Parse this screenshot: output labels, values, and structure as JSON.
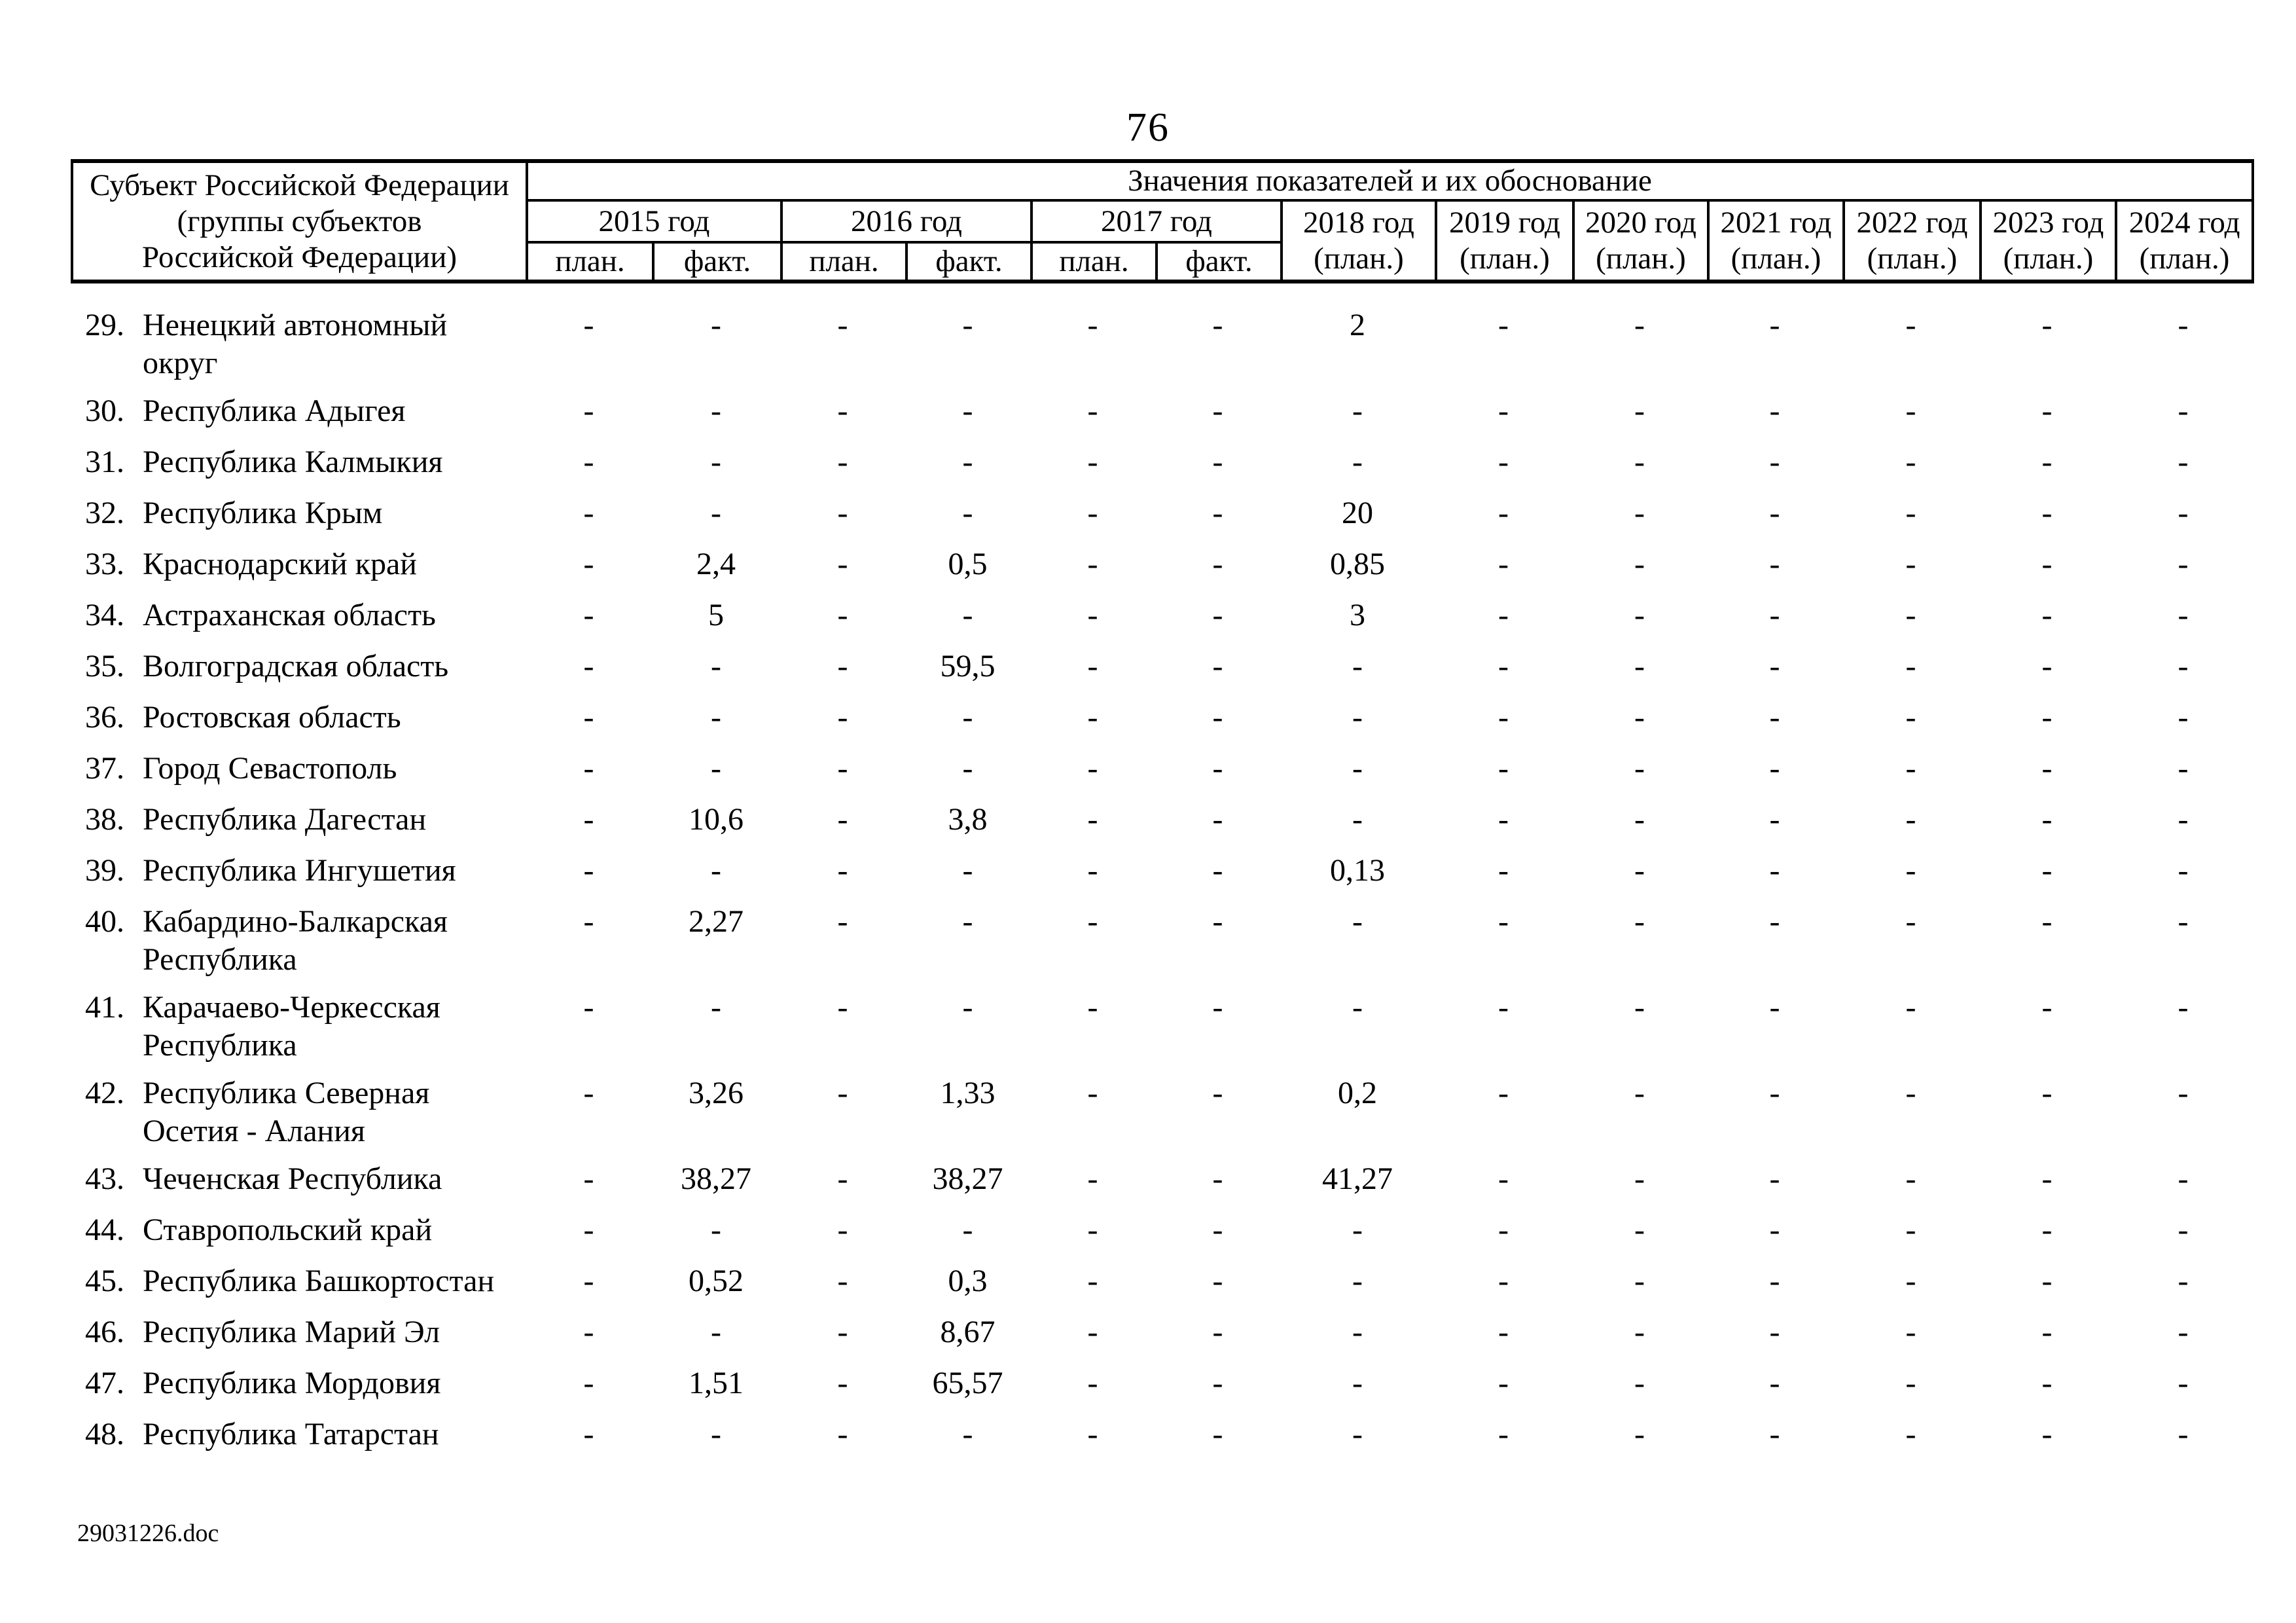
{
  "page": {
    "number": "76",
    "footer": "29031226.doc"
  },
  "table": {
    "region_header_lines": [
      "Субъект Российской Федерации",
      "(группы субъектов",
      "Российской Федерации)"
    ],
    "values_header": "Значения показателей и их обоснование",
    "year_columns": [
      {
        "label": "2015 год",
        "sub_labels": [
          "план.",
          "факт."
        ]
      },
      {
        "label": "2016 год",
        "sub_labels": [
          "план.",
          "факт."
        ]
      },
      {
        "label": "2017 год",
        "sub_labels": [
          "план.",
          "факт."
        ]
      },
      {
        "label": "2018 год",
        "sub_labels": [
          "(план.)"
        ]
      },
      {
        "label": "2019 год",
        "sub_labels": [
          "(план.)"
        ]
      },
      {
        "label": "2020 год",
        "sub_labels": [
          "(план.)"
        ]
      },
      {
        "label": "2021 год",
        "sub_labels": [
          "(план.)"
        ]
      },
      {
        "label": "2022 год",
        "sub_labels": [
          "(план.)"
        ]
      },
      {
        "label": "2023 год",
        "sub_labels": [
          "(план.)"
        ]
      },
      {
        "label": "2024 год",
        "sub_labels": [
          "(план.)"
        ]
      }
    ],
    "rows": [
      {
        "num": "29.",
        "name_lines": [
          "Ненецкий автономный",
          "округ"
        ],
        "values": [
          "-",
          "-",
          "-",
          "-",
          "-",
          "-",
          "2",
          "-",
          "-",
          "-",
          "-",
          "-",
          "-"
        ]
      },
      {
        "num": "30.",
        "name_lines": [
          "Республика Адыгея"
        ],
        "values": [
          "-",
          "-",
          "-",
          "-",
          "-",
          "-",
          "-",
          "-",
          "-",
          "-",
          "-",
          "-",
          "-"
        ]
      },
      {
        "num": "31.",
        "name_lines": [
          "Республика Калмыкия"
        ],
        "values": [
          "-",
          "-",
          "-",
          "-",
          "-",
          "-",
          "-",
          "-",
          "-",
          "-",
          "-",
          "-",
          "-"
        ]
      },
      {
        "num": "32.",
        "name_lines": [
          "Республика Крым"
        ],
        "values": [
          "-",
          "-",
          "-",
          "-",
          "-",
          "-",
          "20",
          "-",
          "-",
          "-",
          "-",
          "-",
          "-"
        ]
      },
      {
        "num": "33.",
        "name_lines": [
          "Краснодарский край"
        ],
        "values": [
          "-",
          "2,4",
          "-",
          "0,5",
          "-",
          "-",
          "0,85",
          "-",
          "-",
          "-",
          "-",
          "-",
          "-"
        ]
      },
      {
        "num": "34.",
        "name_lines": [
          "Астраханская область"
        ],
        "values": [
          "-",
          "5",
          "-",
          "-",
          "-",
          "-",
          "3",
          "-",
          "-",
          "-",
          "-",
          "-",
          "-"
        ]
      },
      {
        "num": "35.",
        "name_lines": [
          "Волгоградская область"
        ],
        "values": [
          "-",
          "-",
          "-",
          "59,5",
          "-",
          "-",
          "-",
          "-",
          "-",
          "-",
          "-",
          "-",
          "-"
        ]
      },
      {
        "num": "36.",
        "name_lines": [
          "Ростовская область"
        ],
        "values": [
          "-",
          "-",
          "-",
          "-",
          "-",
          "-",
          "-",
          "-",
          "-",
          "-",
          "-",
          "-",
          "-"
        ]
      },
      {
        "num": "37.",
        "name_lines": [
          "Город Севастополь"
        ],
        "values": [
          "-",
          "-",
          "-",
          "-",
          "-",
          "-",
          "-",
          "-",
          "-",
          "-",
          "-",
          "-",
          "-"
        ]
      },
      {
        "num": "38.",
        "name_lines": [
          "Республика Дагестан"
        ],
        "values": [
          "-",
          "10,6",
          "-",
          "3,8",
          "-",
          "-",
          "-",
          "-",
          "-",
          "-",
          "-",
          "-",
          "-"
        ]
      },
      {
        "num": "39.",
        "name_lines": [
          "Республика Ингушетия"
        ],
        "values": [
          "-",
          "-",
          "-",
          "-",
          "-",
          "-",
          "0,13",
          "-",
          "-",
          "-",
          "-",
          "-",
          "-"
        ]
      },
      {
        "num": "40.",
        "name_lines": [
          "Кабардино-Балкарская",
          "Республика"
        ],
        "values": [
          "-",
          "2,27",
          "-",
          "-",
          "-",
          "-",
          "-",
          "-",
          "-",
          "-",
          "-",
          "-",
          "-"
        ]
      },
      {
        "num": "41.",
        "name_lines": [
          "Карачаево-Черкесская",
          "Республика"
        ],
        "values": [
          "-",
          "-",
          "-",
          "-",
          "-",
          "-",
          "-",
          "-",
          "-",
          "-",
          "-",
          "-",
          "-"
        ]
      },
      {
        "num": "42.",
        "name_lines": [
          "Республика Северная",
          "Осетия - Алания"
        ],
        "values": [
          "-",
          "3,26",
          "-",
          "1,33",
          "-",
          "-",
          "0,2",
          "-",
          "-",
          "-",
          "-",
          "-",
          "-"
        ]
      },
      {
        "num": "43.",
        "name_lines": [
          "Чеченская Республика"
        ],
        "values": [
          "-",
          "38,27",
          "-",
          "38,27",
          "-",
          "-",
          "41,27",
          "-",
          "-",
          "-",
          "-",
          "-",
          "-"
        ]
      },
      {
        "num": "44.",
        "name_lines": [
          "Ставропольский край"
        ],
        "values": [
          "-",
          "-",
          "-",
          "-",
          "-",
          "-",
          "-",
          "-",
          "-",
          "-",
          "-",
          "-",
          "-"
        ]
      },
      {
        "num": "45.",
        "name_lines": [
          "Республика Башкортостан"
        ],
        "values": [
          "-",
          "0,52",
          "-",
          "0,3",
          "-",
          "-",
          "-",
          "-",
          "-",
          "-",
          "-",
          "-",
          "-"
        ]
      },
      {
        "num": "46.",
        "name_lines": [
          "Республика Марий Эл"
        ],
        "values": [
          "-",
          "-",
          "-",
          "8,67",
          "-",
          "-",
          "-",
          "-",
          "-",
          "-",
          "-",
          "-",
          "-"
        ]
      },
      {
        "num": "47.",
        "name_lines": [
          "Республика Мордовия"
        ],
        "values": [
          "-",
          "1,51",
          "-",
          "65,57",
          "-",
          "-",
          "-",
          "-",
          "-",
          "-",
          "-",
          "-",
          "-"
        ]
      },
      {
        "num": "48.",
        "name_lines": [
          "Республика Татарстан"
        ],
        "values": [
          "-",
          "-",
          "-",
          "-",
          "-",
          "-",
          "-",
          "-",
          "-",
          "-",
          "-",
          "-",
          "-"
        ]
      }
    ]
  }
}
